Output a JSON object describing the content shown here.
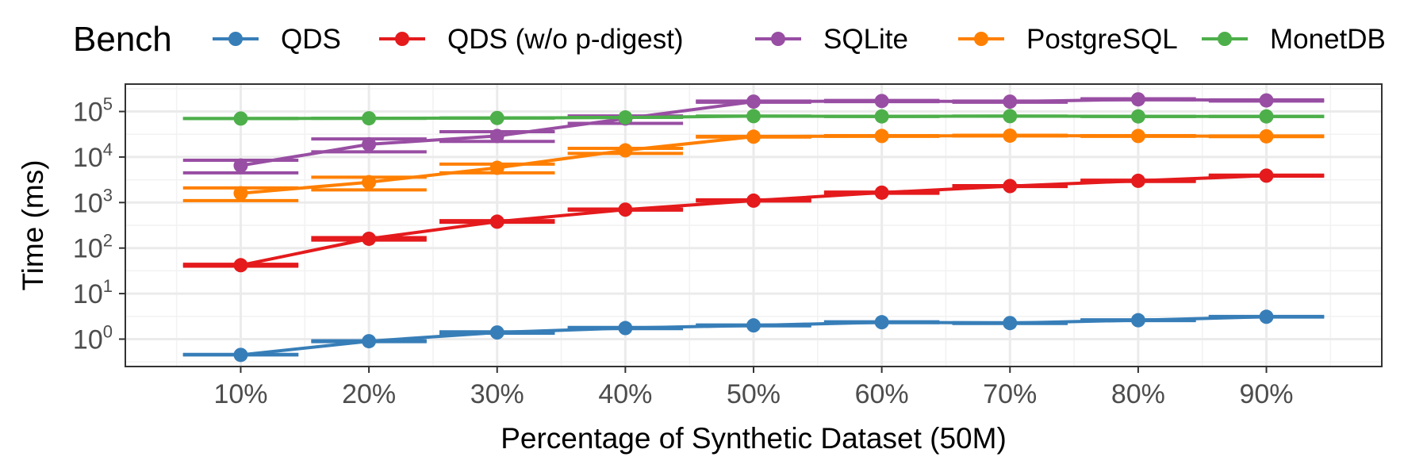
{
  "chart_data": {
    "type": "line",
    "xlabel": "Percentage of Synthetic Dataset (50M)",
    "ylabel": "Time (ms)",
    "y_scale": "log10",
    "ylim": [
      0.25,
      400000
    ],
    "xlim": [
      0.01,
      0.99
    ],
    "grid": true,
    "legend": {
      "title": "Bench",
      "position": "top"
    },
    "categories": [
      "10%",
      "20%",
      "30%",
      "40%",
      "50%",
      "60%",
      "70%",
      "80%",
      "90%"
    ],
    "x": [
      0.1,
      0.2,
      0.3,
      0.4,
      0.5,
      0.6,
      0.7,
      0.8,
      0.9
    ],
    "y_ticks": [
      {
        "value": 1,
        "base": "10",
        "exp": "0"
      },
      {
        "value": 10,
        "base": "10",
        "exp": "1"
      },
      {
        "value": 100,
        "base": "10",
        "exp": "2"
      },
      {
        "value": 1000,
        "base": "10",
        "exp": "3"
      },
      {
        "value": 10000,
        "base": "10",
        "exp": "4"
      },
      {
        "value": 100000,
        "base": "10",
        "exp": "5"
      }
    ],
    "series": [
      {
        "name": "QDS",
        "color": "#377eb8",
        "values": [
          0.45,
          0.9,
          1.4,
          1.75,
          2.0,
          2.35,
          2.25,
          2.6,
          3.1
        ],
        "error_low": [
          0.45,
          0.88,
          1.35,
          1.7,
          1.95,
          2.3,
          2.2,
          2.55,
          3.05
        ],
        "error_high": [
          0.46,
          0.92,
          1.45,
          1.8,
          2.05,
          2.4,
          2.3,
          2.65,
          3.15
        ]
      },
      {
        "name": "QDS (w/o p-digest)",
        "color": "#e41a1c",
        "values": [
          42,
          160,
          380,
          700,
          1100,
          1650,
          2300,
          3000,
          3900
        ],
        "error_low": [
          40,
          150,
          370,
          680,
          1080,
          1600,
          2250,
          2900,
          3800
        ],
        "error_high": [
          44,
          170,
          400,
          720,
          1150,
          1700,
          2350,
          3100,
          4000
        ]
      },
      {
        "name": "SQLite",
        "color": "#984ea3",
        "values": [
          6500,
          19000,
          29000,
          70000,
          165000,
          170000,
          165000,
          185000,
          175000
        ],
        "error_low": [
          4500,
          13000,
          22000,
          55000,
          160000,
          165000,
          160000,
          180000,
          170000
        ],
        "error_high": [
          8500,
          25000,
          36000,
          80000,
          170000,
          175000,
          170000,
          190000,
          180000
        ]
      },
      {
        "name": "PostgreSQL",
        "color": "#ff7f00",
        "values": [
          1600,
          2800,
          5800,
          14000,
          28000,
          29000,
          29500,
          29000,
          28500
        ],
        "error_low": [
          1100,
          1900,
          4500,
          12000,
          27500,
          28500,
          29000,
          28500,
          28000
        ],
        "error_high": [
          2100,
          3600,
          7000,
          15500,
          28500,
          29500,
          30000,
          29500,
          29000
        ]
      },
      {
        "name": "MonetDB",
        "color": "#4daf4a",
        "values": [
          70000,
          71000,
          72000,
          74000,
          79000,
          78000,
          79000,
          78000,
          78000
        ],
        "error_low": [
          70000,
          71000,
          72000,
          74000,
          79000,
          78000,
          79000,
          78000,
          78000
        ],
        "error_high": [
          70000,
          71000,
          72000,
          74000,
          79000,
          78000,
          79000,
          78000,
          78000
        ]
      }
    ]
  }
}
